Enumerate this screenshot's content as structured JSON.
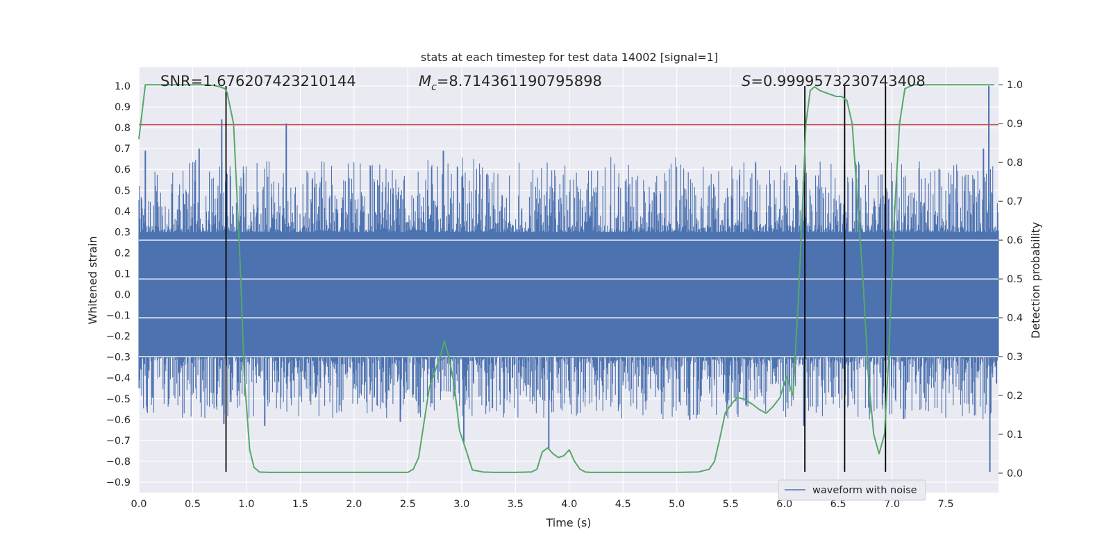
{
  "chart_data": {
    "type": "line",
    "title": "stats at each timestep for test data 14002 [signal=1]",
    "xlabel": "Time (s)",
    "ylabel_left": "Whitened strain",
    "ylabel_right": "Detection probability",
    "xlim": [
      0.0,
      7.99
    ],
    "ylim_left": [
      -0.95,
      1.09
    ],
    "ylim_right": [
      -0.05,
      1.045
    ],
    "x_ticks": [
      "0.0",
      "0.5",
      "1.0",
      "1.5",
      "2.0",
      "2.5",
      "3.0",
      "3.5",
      "4.0",
      "4.5",
      "5.0",
      "5.5",
      "6.0",
      "6.5",
      "7.0",
      "7.5"
    ],
    "y_ticks_left": [
      "1.0",
      "0.9",
      "0.8",
      "0.7",
      "0.6",
      "0.5",
      "0.4",
      "0.3",
      "0.2",
      "0.1",
      "0.0",
      "-0.1",
      "-0.2",
      "-0.3",
      "-0.4",
      "-0.5",
      "-0.6",
      "-0.7",
      "-0.8",
      "-0.9"
    ],
    "y_ticks_right": [
      "1.0",
      "0.9",
      "0.8",
      "0.7",
      "0.6",
      "0.5",
      "0.4",
      "0.3",
      "0.2",
      "0.1",
      "0.0"
    ],
    "grid": true,
    "legend_position": "lower-right",
    "annotations": {
      "snr": "SNR=1.676207423210144",
      "mc_symbol": "M",
      "mc_sub": "c",
      "mc_value": "=8.714361190795898",
      "s_symbol": "S",
      "s_value": "=0.9999573230743408"
    },
    "series": [
      {
        "name": "waveform with noise",
        "axis": "left",
        "color": "#4c72b0",
        "kind": "noise-band",
        "core_amplitude": [
          -0.3,
          0.3
        ],
        "tall_spikes": [
          [
            0.06,
            0.69
          ],
          [
            0.56,
            0.7
          ],
          [
            0.77,
            0.84
          ],
          [
            0.79,
            -0.62
          ],
          [
            1.37,
            0.82
          ],
          [
            2.83,
            0.69
          ],
          [
            3.02,
            -0.71
          ],
          [
            3.81,
            -0.74
          ],
          [
            5.12,
            -0.6
          ],
          [
            6.18,
            -0.63
          ],
          [
            7.9,
            1.0
          ],
          [
            7.91,
            -0.85
          ],
          [
            7.85,
            0.7
          ],
          [
            2.43,
            -0.61
          ],
          [
            1.17,
            -0.63
          ]
        ]
      },
      {
        "name": "",
        "axis": "right",
        "color": "#55a868",
        "x": [
          0.0,
          0.06,
          0.1,
          0.2,
          0.3,
          0.4,
          0.5,
          0.6,
          0.7,
          0.75,
          0.8,
          0.82,
          0.88,
          0.94,
          0.98,
          1.03,
          1.07,
          1.12,
          1.2,
          1.3,
          1.5,
          1.7,
          1.9,
          2.0,
          2.2,
          2.4,
          2.5,
          2.55,
          2.6,
          2.65,
          2.7,
          2.75,
          2.8,
          2.84,
          2.88,
          2.93,
          2.98,
          3.04,
          3.1,
          3.2,
          3.3,
          3.5,
          3.65,
          3.7,
          3.75,
          3.8,
          3.85,
          3.9,
          3.95,
          4.0,
          4.05,
          4.1,
          4.15,
          4.2,
          4.3,
          4.5,
          4.8,
          5.0,
          5.2,
          5.3,
          5.35,
          5.4,
          5.45,
          5.5,
          5.56,
          5.63,
          5.7,
          5.76,
          5.83,
          5.89,
          5.96,
          6.02,
          6.08,
          6.13,
          6.17,
          6.2,
          6.24,
          6.28,
          6.33,
          6.38,
          6.43,
          6.48,
          6.53,
          6.58,
          6.63,
          6.68,
          6.73,
          6.78,
          6.83,
          6.88,
          6.93,
          6.97,
          7.02,
          7.07,
          7.12,
          7.2,
          7.5,
          7.7,
          7.95
        ],
        "y": [
          0.86,
          1.0,
          1.0,
          1.0,
          1.0,
          1.0,
          1.0,
          1.0,
          0.998,
          0.995,
          0.99,
          0.98,
          0.9,
          0.55,
          0.25,
          0.06,
          0.015,
          0.003,
          0.002,
          0.002,
          0.002,
          0.002,
          0.002,
          0.002,
          0.002,
          0.002,
          0.002,
          0.01,
          0.04,
          0.13,
          0.22,
          0.26,
          0.3,
          0.34,
          0.3,
          0.23,
          0.11,
          0.06,
          0.008,
          0.003,
          0.002,
          0.002,
          0.003,
          0.01,
          0.055,
          0.065,
          0.05,
          0.04,
          0.045,
          0.06,
          0.03,
          0.01,
          0.003,
          0.002,
          0.002,
          0.002,
          0.002,
          0.002,
          0.003,
          0.01,
          0.03,
          0.09,
          0.155,
          0.175,
          0.195,
          0.19,
          0.178,
          0.165,
          0.154,
          0.17,
          0.195,
          0.25,
          0.2,
          0.45,
          0.7,
          0.9,
          0.985,
          0.995,
          0.985,
          0.98,
          0.975,
          0.97,
          0.97,
          0.96,
          0.9,
          0.7,
          0.5,
          0.25,
          0.1,
          0.05,
          0.1,
          0.3,
          0.65,
          0.9,
          0.99,
          1.0,
          1.0,
          1.0,
          1.0
        ]
      }
    ],
    "threshold_line": {
      "axis": "left",
      "value": 0.815,
      "color": "#c44e52"
    },
    "vertical_lines": [
      0.81,
      6.19,
      6.56,
      6.94
    ],
    "vertical_line_range_left": [
      -0.85,
      1.0
    ],
    "legend": [
      {
        "label": "waveform with noise",
        "color": "#4c72b0"
      }
    ]
  }
}
